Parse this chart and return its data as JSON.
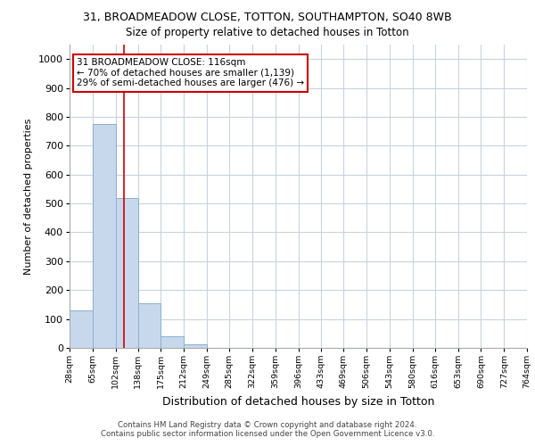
{
  "title_line1": "31, BROADMEADOW CLOSE, TOTTON, SOUTHAMPTON, SO40 8WB",
  "title_line2": "Size of property relative to detached houses in Totton",
  "xlabel": "Distribution of detached houses by size in Totton",
  "ylabel": "Number of detached properties",
  "footer_line1": "Contains HM Land Registry data © Crown copyright and database right 2024.",
  "footer_line2": "Contains public sector information licensed under the Open Government Licence v3.0.",
  "bin_edges": [
    28,
    65,
    102,
    138,
    175,
    212,
    249,
    285,
    322,
    359,
    396,
    433,
    469,
    506,
    543,
    580,
    616,
    653,
    690,
    727,
    764
  ],
  "bar_heights": [
    130,
    775,
    520,
    155,
    40,
    12,
    0,
    0,
    0,
    0,
    0,
    0,
    0,
    0,
    0,
    0,
    0,
    0,
    0,
    0
  ],
  "bar_color": "#c8d8ec",
  "bar_edge_color": "#8ab0cc",
  "red_line_x": 116,
  "annotation_text": "31 BROADMEADOW CLOSE: 116sqm\n← 70% of detached houses are smaller (1,139)\n29% of semi-detached houses are larger (476) →",
  "annotation_box_color": "#ffffff",
  "annotation_box_edge_color": "#cc0000",
  "ylim": [
    0,
    1050
  ],
  "yticks": [
    0,
    100,
    200,
    300,
    400,
    500,
    600,
    700,
    800,
    900,
    1000
  ],
  "background_color": "#ffffff",
  "grid_color": "#c8d4e0"
}
